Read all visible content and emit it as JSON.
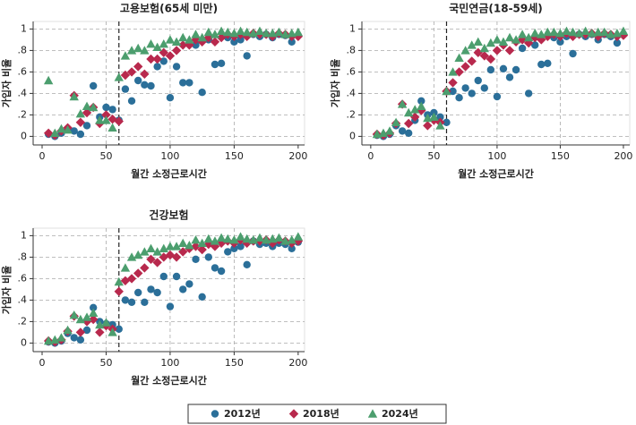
{
  "chart_data": [
    {
      "type": "scatter",
      "title": "고용보험(65세 미만)",
      "xlabel": "월간 소정근로시간",
      "ylabel": "가입자 비율",
      "x": [
        5,
        10,
        15,
        20,
        25,
        30,
        35,
        40,
        45,
        50,
        55,
        60,
        65,
        70,
        75,
        80,
        85,
        90,
        95,
        100,
        105,
        110,
        115,
        120,
        125,
        130,
        135,
        140,
        145,
        150,
        155,
        160,
        165,
        170,
        175,
        180,
        185,
        190,
        195,
        200
      ],
      "series": [
        {
          "name": "2012년",
          "color": "#2b6f99",
          "marker": "circle",
          "values": [
            0.02,
            0.0,
            0.03,
            0.07,
            0.05,
            0.02,
            0.1,
            0.47,
            0.18,
            0.27,
            0.25,
            0.15,
            0.44,
            0.33,
            0.52,
            0.48,
            0.47,
            0.65,
            0.7,
            0.36,
            0.65,
            0.5,
            0.5,
            0.85,
            0.41,
            0.9,
            0.67,
            0.68,
            0.92,
            0.88,
            0.9,
            0.75,
            0.95,
            0.93,
            0.95,
            0.92,
            0.95,
            0.94,
            0.88,
            0.94
          ]
        },
        {
          "name": "2018년",
          "color": "#b8294d",
          "marker": "diamond",
          "values": [
            0.03,
            0.01,
            0.05,
            0.08,
            0.38,
            0.13,
            0.22,
            0.27,
            0.12,
            0.2,
            0.16,
            0.14,
            0.57,
            0.6,
            0.65,
            0.58,
            0.72,
            0.72,
            0.78,
            0.75,
            0.8,
            0.85,
            0.85,
            0.9,
            0.88,
            0.92,
            0.88,
            0.92,
            0.95,
            0.93,
            0.95,
            0.93,
            0.96,
            0.95,
            0.95,
            0.93,
            0.96,
            0.95,
            0.93,
            0.93
          ]
        },
        {
          "name": "2024년",
          "color": "#4c9e6e",
          "marker": "triangle",
          "values": [
            0.52,
            0.03,
            0.07,
            0.06,
            0.37,
            0.21,
            0.28,
            0.27,
            0.15,
            0.15,
            0.08,
            0.55,
            0.75,
            0.8,
            0.82,
            0.8,
            0.86,
            0.83,
            0.86,
            0.9,
            0.88,
            0.92,
            0.9,
            0.95,
            0.92,
            0.97,
            0.95,
            0.98,
            0.97,
            0.96,
            0.98,
            0.97,
            0.96,
            0.98,
            0.96,
            0.96,
            0.97,
            0.95,
            0.96,
            0.97
          ]
        }
      ],
      "xlim": [
        -7,
        205
      ],
      "ylim": [
        -0.08,
        1.07
      ],
      "xticks": [
        0,
        50,
        100,
        150,
        200
      ],
      "yticks": [
        0,
        {
          "value": 0.2,
          "label": ".2"
        },
        {
          "value": 0.4,
          "label": ".4"
        },
        {
          "value": 0.6,
          "label": ".6"
        },
        {
          "value": 0.8,
          "label": ".8"
        },
        1
      ],
      "vline": 60,
      "grid": true
    },
    {
      "type": "scatter",
      "title": "국민연금(18-59세)",
      "xlabel": "월간 소정근로시간",
      "ylabel": "가입자 비율",
      "x": [
        5,
        10,
        15,
        20,
        25,
        30,
        35,
        40,
        45,
        50,
        55,
        60,
        65,
        70,
        75,
        80,
        85,
        90,
        95,
        100,
        105,
        110,
        115,
        120,
        125,
        130,
        135,
        140,
        145,
        150,
        155,
        160,
        165,
        170,
        175,
        180,
        185,
        190,
        195,
        200
      ],
      "series": [
        {
          "color": "#2b6f99",
          "marker": "circle",
          "values": [
            0.01,
            0.0,
            0.02,
            0.1,
            0.05,
            0.03,
            0.15,
            0.33,
            0.2,
            0.22,
            0.18,
            0.13,
            0.42,
            0.36,
            0.45,
            0.4,
            0.52,
            0.45,
            0.62,
            0.37,
            0.63,
            0.55,
            0.62,
            0.82,
            0.4,
            0.85,
            0.67,
            0.68,
            0.92,
            0.88,
            0.93,
            0.77,
            0.95,
            0.93,
            0.95,
            0.9,
            0.95,
            0.93,
            0.87,
            0.95
          ]
        },
        {
          "color": "#b8294d",
          "marker": "diamond",
          "values": [
            0.02,
            0.01,
            0.03,
            0.12,
            0.3,
            0.12,
            0.18,
            0.24,
            0.1,
            0.15,
            0.13,
            0.42,
            0.5,
            0.6,
            0.65,
            0.7,
            0.78,
            0.75,
            0.72,
            0.8,
            0.85,
            0.8,
            0.88,
            0.9,
            0.87,
            0.92,
            0.9,
            0.93,
            0.95,
            0.93,
            0.96,
            0.93,
            0.95,
            0.95,
            0.96,
            0.93,
            0.96,
            0.95,
            0.93,
            0.94
          ]
        },
        {
          "color": "#4c9e6e",
          "marker": "triangle",
          "values": [
            0.02,
            0.03,
            0.05,
            0.13,
            0.3,
            0.22,
            0.25,
            0.28,
            0.17,
            0.18,
            0.1,
            0.42,
            0.6,
            0.73,
            0.8,
            0.85,
            0.88,
            0.82,
            0.87,
            0.9,
            0.88,
            0.92,
            0.9,
            0.95,
            0.92,
            0.96,
            0.95,
            0.97,
            0.97,
            0.96,
            0.98,
            0.97,
            0.96,
            0.98,
            0.96,
            0.97,
            0.97,
            0.95,
            0.96,
            0.98
          ]
        }
      ],
      "xlim": [
        -7,
        205
      ],
      "ylim": [
        -0.08,
        1.07
      ],
      "xticks": [
        0,
        50,
        100,
        150,
        200
      ],
      "yticks": [
        0,
        {
          "value": 0.2,
          "label": ".2"
        },
        {
          "value": 0.4,
          "label": ".4"
        },
        {
          "value": 0.6,
          "label": ".6"
        },
        {
          "value": 0.8,
          "label": ".8"
        },
        1
      ],
      "vline": 60,
      "grid": true
    },
    {
      "type": "scatter",
      "title": "건강보험",
      "xlabel": "월간 소정근로시간",
      "ylabel": "가입자 비율",
      "x": [
        5,
        10,
        15,
        20,
        25,
        30,
        35,
        40,
        45,
        50,
        55,
        60,
        65,
        70,
        75,
        80,
        85,
        90,
        95,
        100,
        105,
        110,
        115,
        120,
        125,
        130,
        135,
        140,
        145,
        150,
        155,
        160,
        165,
        170,
        175,
        180,
        185,
        190,
        195,
        200
      ],
      "series": [
        {
          "color": "#2b6f99",
          "marker": "circle",
          "values": [
            0.01,
            0.0,
            0.02,
            0.09,
            0.05,
            0.03,
            0.12,
            0.33,
            0.2,
            0.18,
            0.17,
            0.13,
            0.4,
            0.38,
            0.47,
            0.38,
            0.5,
            0.47,
            0.62,
            0.34,
            0.62,
            0.5,
            0.55,
            0.78,
            0.43,
            0.8,
            0.7,
            0.67,
            0.85,
            0.88,
            0.9,
            0.73,
            0.95,
            0.92,
            0.93,
            0.9,
            0.93,
            0.92,
            0.88,
            0.94
          ]
        },
        {
          "color": "#b8294d",
          "marker": "diamond",
          "values": [
            0.02,
            0.01,
            0.03,
            0.11,
            0.25,
            0.1,
            0.2,
            0.22,
            0.1,
            0.16,
            0.13,
            0.48,
            0.58,
            0.6,
            0.65,
            0.7,
            0.78,
            0.75,
            0.8,
            0.82,
            0.8,
            0.85,
            0.88,
            0.9,
            0.87,
            0.92,
            0.9,
            0.93,
            0.95,
            0.93,
            0.96,
            0.93,
            0.95,
            0.95,
            0.96,
            0.93,
            0.96,
            0.95,
            0.93,
            0.95
          ]
        },
        {
          "color": "#4c9e6e",
          "marker": "triangle",
          "values": [
            0.02,
            0.03,
            0.05,
            0.12,
            0.26,
            0.22,
            0.24,
            0.28,
            0.17,
            0.19,
            0.1,
            0.57,
            0.7,
            0.8,
            0.82,
            0.85,
            0.88,
            0.85,
            0.88,
            0.9,
            0.9,
            0.93,
            0.91,
            0.96,
            0.93,
            0.97,
            0.95,
            0.98,
            0.97,
            0.96,
            0.99,
            0.97,
            0.96,
            0.98,
            0.96,
            0.97,
            0.98,
            0.95,
            0.96,
            0.99
          ]
        }
      ],
      "xlim": [
        -7,
        205
      ],
      "ylim": [
        -0.08,
        1.07
      ],
      "xticks": [
        0,
        50,
        100,
        150,
        200
      ],
      "yticks": [
        0,
        {
          "value": 0.2,
          "label": ".2"
        },
        {
          "value": 0.4,
          "label": ".4"
        },
        {
          "value": 0.6,
          "label": ".6"
        },
        {
          "value": 0.8,
          "label": ".8"
        },
        1
      ],
      "vline": 60,
      "grid": true
    }
  ]
}
